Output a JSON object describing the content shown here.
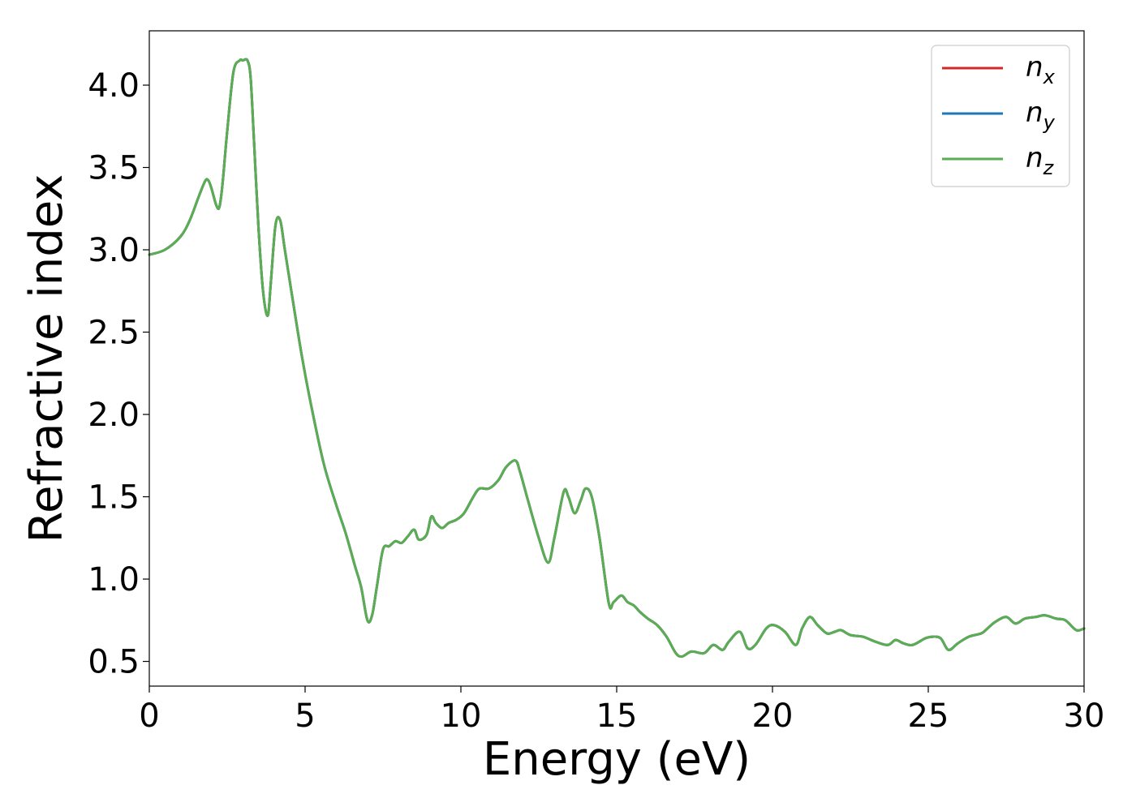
{
  "chart_data": {
    "type": "line",
    "xlabel": "Energy (eV)",
    "ylabel": "Refractive index",
    "xlim": [
      0,
      30
    ],
    "ylim": [
      0.35,
      4.33
    ],
    "xticks": [
      0,
      5,
      10,
      15,
      20,
      25,
      30
    ],
    "xtick_labels": [
      "0",
      "5",
      "10",
      "15",
      "20",
      "25",
      "30"
    ],
    "yticks": [
      0.5,
      1.0,
      1.5,
      2.0,
      2.5,
      3.0,
      3.5,
      4.0
    ],
    "ytick_labels": [
      "0.5",
      "1.0",
      "1.5",
      "2.0",
      "2.5",
      "3.0",
      "3.5",
      "4.0"
    ],
    "grid": false,
    "legend_position": "top-right",
    "x": [
      0,
      0.5,
      1.0,
      1.3,
      1.6,
      1.8,
      1.9,
      2.0,
      2.15,
      2.25,
      2.35,
      2.5,
      2.7,
      2.9,
      3.0,
      3.15,
      3.25,
      3.35,
      3.5,
      3.65,
      3.8,
      3.9,
      4.05,
      4.2,
      4.35,
      4.6,
      4.9,
      5.2,
      5.6,
      6.0,
      6.3,
      6.6,
      6.8,
      7.0,
      7.15,
      7.3,
      7.5,
      7.7,
      7.9,
      8.1,
      8.3,
      8.5,
      8.65,
      8.9,
      9.05,
      9.2,
      9.4,
      9.6,
      9.85,
      10.1,
      10.4,
      10.6,
      10.9,
      11.2,
      11.45,
      11.75,
      11.9,
      12.15,
      12.5,
      12.8,
      13.0,
      13.3,
      13.45,
      13.65,
      13.85,
      14.0,
      14.2,
      14.45,
      14.75,
      14.9,
      15.15,
      15.35,
      15.55,
      15.75,
      16.0,
      16.3,
      16.6,
      16.9,
      17.1,
      17.4,
      17.8,
      18.1,
      18.4,
      18.6,
      18.95,
      19.2,
      19.45,
      19.8,
      20.05,
      20.4,
      20.75,
      20.95,
      21.2,
      21.45,
      21.75,
      22.0,
      22.2,
      22.5,
      22.9,
      23.3,
      23.7,
      23.95,
      24.2,
      24.5,
      24.9,
      25.15,
      25.4,
      25.65,
      25.95,
      26.3,
      26.7,
      26.9,
      27.15,
      27.5,
      27.8,
      28.1,
      28.45,
      28.75,
      29.1,
      29.4,
      29.75,
      30.0
    ],
    "series": [
      {
        "name": "n_x",
        "name_main": "n",
        "name_sub": "x",
        "color": "#d62728",
        "values": [
          2.97,
          3.0,
          3.08,
          3.18,
          3.33,
          3.42,
          3.42,
          3.37,
          3.27,
          3.26,
          3.4,
          3.72,
          4.08,
          4.15,
          4.15,
          4.15,
          4.05,
          3.7,
          3.15,
          2.75,
          2.6,
          2.8,
          3.15,
          3.18,
          3.0,
          2.7,
          2.35,
          2.05,
          1.7,
          1.45,
          1.28,
          1.08,
          0.95,
          0.75,
          0.78,
          0.95,
          1.18,
          1.2,
          1.23,
          1.22,
          1.26,
          1.3,
          1.24,
          1.27,
          1.38,
          1.34,
          1.31,
          1.34,
          1.36,
          1.4,
          1.5,
          1.55,
          1.55,
          1.6,
          1.68,
          1.72,
          1.65,
          1.48,
          1.25,
          1.1,
          1.25,
          1.53,
          1.5,
          1.4,
          1.48,
          1.55,
          1.5,
          1.25,
          0.85,
          0.86,
          0.9,
          0.86,
          0.84,
          0.8,
          0.76,
          0.72,
          0.65,
          0.55,
          0.53,
          0.56,
          0.55,
          0.6,
          0.57,
          0.62,
          0.68,
          0.58,
          0.6,
          0.7,
          0.72,
          0.68,
          0.6,
          0.7,
          0.77,
          0.72,
          0.67,
          0.68,
          0.69,
          0.66,
          0.65,
          0.62,
          0.6,
          0.63,
          0.61,
          0.6,
          0.64,
          0.65,
          0.64,
          0.57,
          0.61,
          0.65,
          0.67,
          0.7,
          0.74,
          0.77,
          0.73,
          0.76,
          0.77,
          0.78,
          0.76,
          0.75,
          0.69,
          0.7
        ]
      },
      {
        "name": "n_y",
        "name_main": "n",
        "name_sub": "y",
        "color": "#1f77b4",
        "values": [
          2.97,
          3.0,
          3.08,
          3.18,
          3.33,
          3.42,
          3.42,
          3.37,
          3.27,
          3.26,
          3.4,
          3.72,
          4.08,
          4.15,
          4.15,
          4.15,
          4.05,
          3.7,
          3.15,
          2.75,
          2.6,
          2.8,
          3.15,
          3.18,
          3.0,
          2.7,
          2.35,
          2.05,
          1.7,
          1.45,
          1.28,
          1.08,
          0.95,
          0.75,
          0.78,
          0.95,
          1.18,
          1.2,
          1.23,
          1.22,
          1.26,
          1.3,
          1.24,
          1.27,
          1.38,
          1.34,
          1.31,
          1.34,
          1.36,
          1.4,
          1.5,
          1.55,
          1.55,
          1.6,
          1.68,
          1.72,
          1.65,
          1.48,
          1.25,
          1.1,
          1.25,
          1.53,
          1.5,
          1.4,
          1.48,
          1.55,
          1.5,
          1.25,
          0.85,
          0.86,
          0.9,
          0.86,
          0.84,
          0.8,
          0.76,
          0.72,
          0.65,
          0.55,
          0.53,
          0.56,
          0.55,
          0.6,
          0.57,
          0.62,
          0.68,
          0.58,
          0.6,
          0.7,
          0.72,
          0.68,
          0.6,
          0.7,
          0.77,
          0.72,
          0.67,
          0.68,
          0.69,
          0.66,
          0.65,
          0.62,
          0.6,
          0.63,
          0.61,
          0.6,
          0.64,
          0.65,
          0.64,
          0.57,
          0.61,
          0.65,
          0.67,
          0.7,
          0.74,
          0.77,
          0.73,
          0.76,
          0.77,
          0.78,
          0.76,
          0.75,
          0.69,
          0.7
        ]
      },
      {
        "name": "n_z",
        "name_main": "n",
        "name_sub": "z",
        "color": "#5aad52",
        "values": [
          2.97,
          3.0,
          3.08,
          3.18,
          3.33,
          3.42,
          3.42,
          3.37,
          3.27,
          3.26,
          3.4,
          3.72,
          4.08,
          4.15,
          4.15,
          4.15,
          4.05,
          3.7,
          3.15,
          2.75,
          2.6,
          2.8,
          3.15,
          3.18,
          3.0,
          2.7,
          2.35,
          2.05,
          1.7,
          1.45,
          1.28,
          1.08,
          0.95,
          0.75,
          0.78,
          0.95,
          1.18,
          1.2,
          1.23,
          1.22,
          1.26,
          1.3,
          1.24,
          1.27,
          1.38,
          1.34,
          1.31,
          1.34,
          1.36,
          1.4,
          1.5,
          1.55,
          1.55,
          1.6,
          1.68,
          1.72,
          1.65,
          1.48,
          1.25,
          1.1,
          1.25,
          1.53,
          1.5,
          1.4,
          1.48,
          1.55,
          1.5,
          1.25,
          0.85,
          0.86,
          0.9,
          0.86,
          0.84,
          0.8,
          0.76,
          0.72,
          0.65,
          0.55,
          0.53,
          0.56,
          0.55,
          0.6,
          0.57,
          0.62,
          0.68,
          0.58,
          0.6,
          0.7,
          0.72,
          0.68,
          0.6,
          0.7,
          0.77,
          0.72,
          0.67,
          0.68,
          0.69,
          0.66,
          0.65,
          0.62,
          0.6,
          0.63,
          0.61,
          0.6,
          0.64,
          0.65,
          0.64,
          0.57,
          0.61,
          0.65,
          0.67,
          0.7,
          0.74,
          0.77,
          0.73,
          0.76,
          0.77,
          0.78,
          0.76,
          0.75,
          0.69,
          0.7
        ]
      }
    ]
  }
}
